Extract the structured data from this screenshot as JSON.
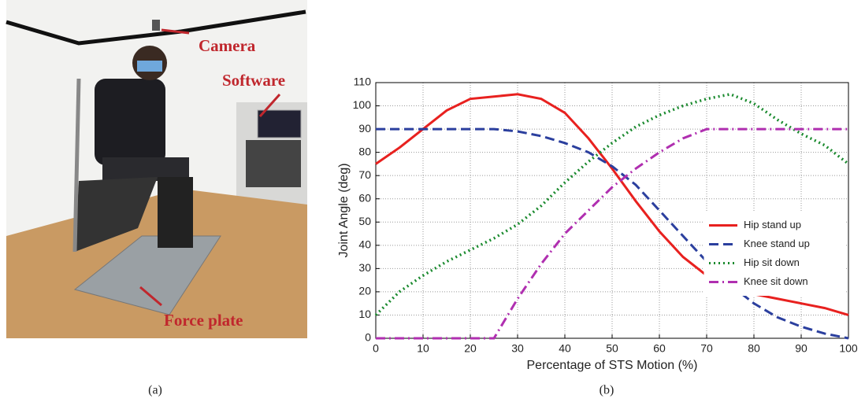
{
  "photo": {
    "labels": [
      "Camera",
      "Software",
      "Force plate"
    ]
  },
  "panel_labels": [
    "(a)",
    "(b)"
  ],
  "chart_data": {
    "type": "line",
    "x_label": "Percentage of STS Motion (%)",
    "y_label": "Joint Angle (deg)",
    "x": [
      0,
      5,
      10,
      15,
      20,
      25,
      30,
      35,
      40,
      45,
      50,
      55,
      60,
      65,
      70,
      75,
      80,
      85,
      90,
      95,
      100
    ],
    "series": [
      {
        "name": "Hip stand up",
        "color": "#e8211f",
        "style": "solid",
        "values": [
          75,
          82,
          90,
          98,
          103,
          104,
          105,
          103,
          97,
          86,
          73,
          59,
          46,
          35,
          27,
          22,
          19,
          17,
          15,
          13,
          10
        ]
      },
      {
        "name": "Knee stand up",
        "color": "#2b3f9e",
        "style": "dashed",
        "values": [
          90,
          90,
          90,
          90,
          90,
          90,
          89,
          87,
          84,
          80,
          74,
          66,
          55,
          44,
          33,
          23,
          15,
          9,
          5,
          2,
          0
        ]
      },
      {
        "name": "Hip sit down",
        "color": "#1a8a2e",
        "style": "dotted",
        "values": [
          10,
          20,
          27,
          33,
          38,
          43,
          49,
          57,
          67,
          76,
          84,
          91,
          96,
          100,
          103,
          105,
          101,
          94,
          88,
          83,
          75
        ]
      },
      {
        "name": "Knee sit down",
        "color": "#b02fb0",
        "style": "dashdot",
        "values": [
          0,
          0,
          0,
          0,
          0,
          0,
          17,
          32,
          45,
          55,
          65,
          73,
          80,
          86,
          90,
          90,
          90,
          90,
          90,
          90,
          90
        ]
      }
    ],
    "xlim": [
      0,
      100
    ],
    "xticks": [
      0,
      10,
      20,
      30,
      40,
      50,
      60,
      70,
      80,
      90,
      100
    ],
    "ylim": [
      0,
      110
    ],
    "yticks": [
      0,
      10,
      20,
      30,
      40,
      50,
      60,
      70,
      80,
      90,
      100,
      110
    ],
    "grid": true,
    "legend": "center right"
  }
}
